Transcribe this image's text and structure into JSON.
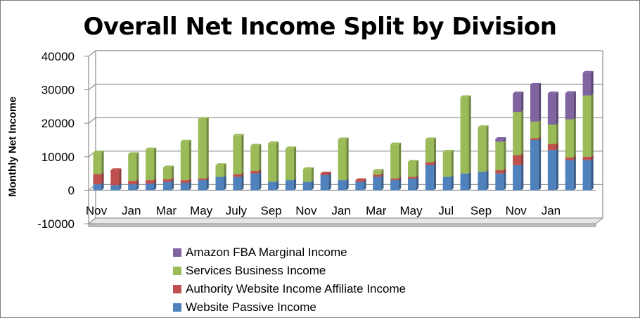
{
  "chart_data": {
    "type": "bar",
    "stacked": true,
    "title": "Overall Net Income Split by Division",
    "ylabel": "Monthly Net Income",
    "xlabel": "",
    "ylim": [
      -10000,
      40000
    ],
    "yticks": [
      -10000,
      0,
      10000,
      20000,
      30000,
      40000
    ],
    "ytick_labels": [
      "-10000",
      "0",
      "10000",
      "20000",
      "30000",
      "40000"
    ],
    "categories": [
      "Nov",
      "Dec",
      "Jan",
      "Feb",
      "Mar",
      "Apr",
      "May",
      "Jun",
      "July",
      "Aug",
      "Sep",
      "Oct",
      "Nov",
      "Dec",
      "Jan",
      "Feb",
      "Mar",
      "Apr",
      "May",
      "Jun",
      "Jul",
      "Aug",
      "Sep",
      "Oct",
      "Nov",
      "Dec",
      "Jan",
      "Feb",
      "Mar"
    ],
    "xtick_labels": [
      "Nov",
      "",
      "Jan",
      "",
      "Mar",
      "",
      "May",
      "",
      "July",
      "",
      "Sep",
      "",
      "Nov",
      "",
      "Jan",
      "",
      "Mar",
      "",
      "May",
      "",
      "Jul",
      "",
      "Sep",
      "",
      "Nov",
      "",
      "Jan",
      "",
      ""
    ],
    "series": [
      {
        "name": "Website Passive Income",
        "color": "#4f81bd",
        "values": [
          1800,
          1500,
          1800,
          2000,
          2500,
          2200,
          3000,
          4000,
          4000,
          5000,
          2500,
          3000,
          2500,
          4500,
          3000,
          2500,
          4000,
          3000,
          3500,
          7500,
          4000,
          5000,
          5500,
          5000,
          7500,
          15000,
          12000,
          9000,
          9000
        ]
      },
      {
        "name": "Authority Website Income Affiliate Income",
        "color": "#c0504d",
        "values": [
          3000,
          4500,
          1000,
          1000,
          800,
          800,
          500,
          0,
          800,
          800,
          0,
          0,
          0,
          500,
          0,
          500,
          600,
          500,
          500,
          800,
          0,
          0,
          0,
          1000,
          3000,
          500,
          1800,
          800,
          1000
        ]
      },
      {
        "name": "Services Business Income",
        "color": "#9bbb59",
        "values": [
          6500,
          0,
          8000,
          9200,
          3500,
          11500,
          17800,
          3500,
          11500,
          7500,
          11500,
          9500,
          3800,
          0,
          12200,
          0,
          1200,
          10200,
          4500,
          6900,
          7500,
          22800,
          13300,
          8500,
          12900,
          5000,
          5800,
          11400,
          18300
        ]
      },
      {
        "name": "Amazon FBA Marginal Income",
        "color": "#8064a2",
        "values": [
          0,
          0,
          0,
          0,
          0,
          0,
          0,
          0,
          0,
          0,
          0,
          0,
          0,
          0,
          0,
          0,
          0,
          0,
          0,
          0,
          0,
          0,
          0,
          800,
          5500,
          11000,
          9300,
          7800,
          6800
        ]
      }
    ],
    "legend": {
      "position": "bottom",
      "order": [
        "Amazon FBA Marginal Income",
        "Services Business Income",
        "Authority Website Income Affiliate Income",
        "Website Passive Income"
      ]
    },
    "grid": true
  }
}
